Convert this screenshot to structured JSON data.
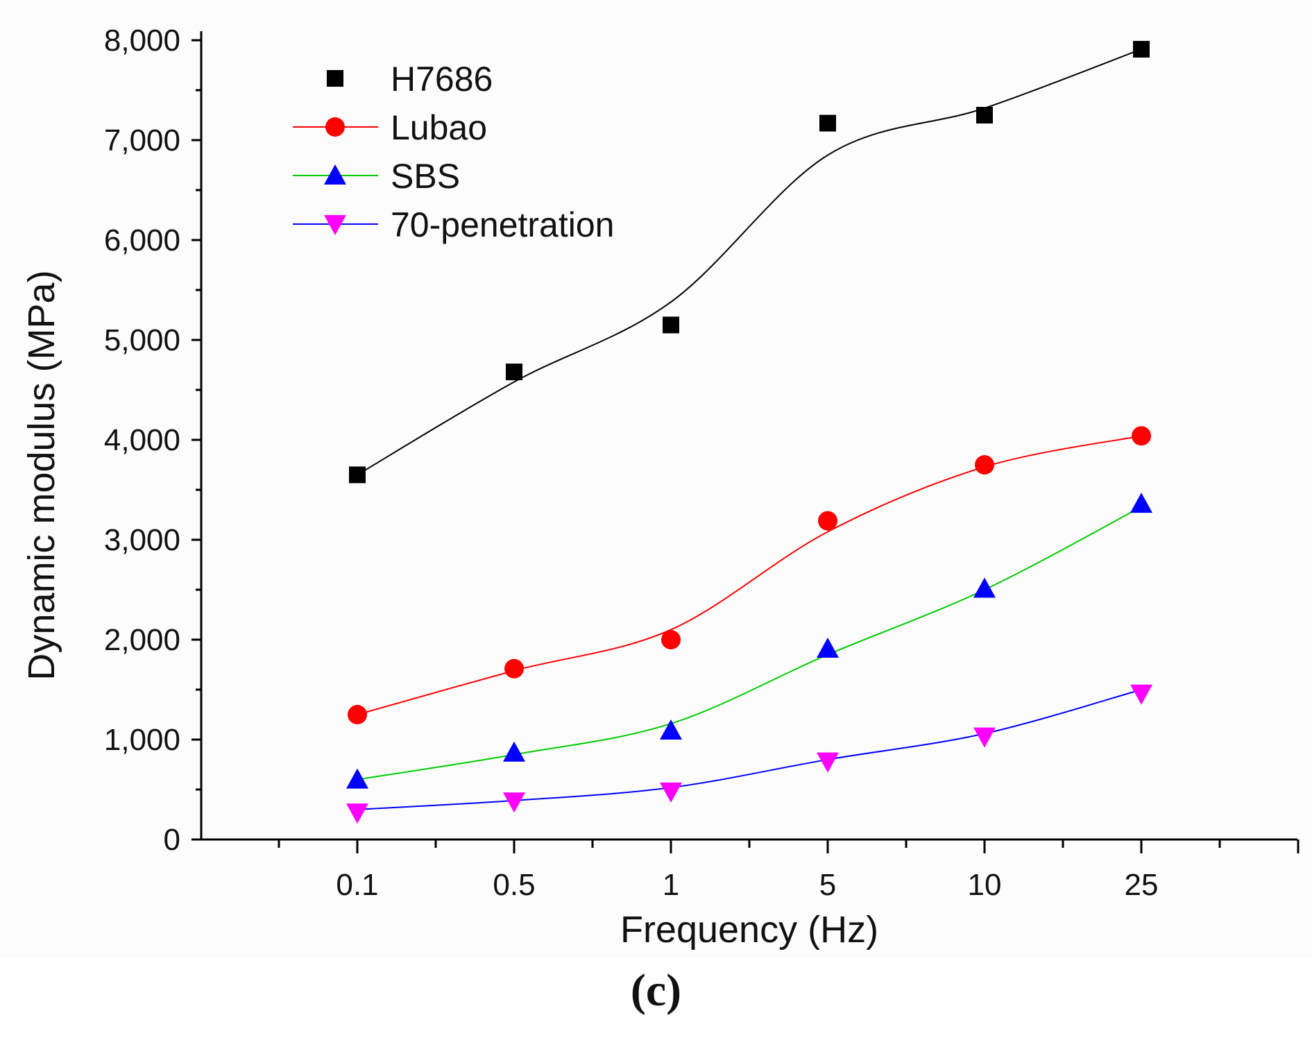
{
  "chart_data": {
    "type": "line",
    "title": "",
    "xlabel": "Frequency (Hz)",
    "ylabel": "Dynamic modulus (MPa)",
    "categories": [
      "0.1",
      "0.5",
      "1",
      "5",
      "10",
      "25"
    ],
    "ylim": [
      0,
      8000
    ],
    "yticks": [
      "0",
      "1,000",
      "2,000",
      "3,000",
      "4,000",
      "5,000",
      "6,000",
      "7,000",
      "8,000"
    ],
    "ytick_values": [
      0,
      1000,
      2000,
      3000,
      4000,
      5000,
      6000,
      7000,
      8000
    ],
    "legend_position": "top-left",
    "series": [
      {
        "name": "H7686",
        "marker": "square",
        "marker_color": "#000000",
        "line_color": "#000000",
        "values": [
          3650,
          4680,
          5150,
          7170,
          7250,
          7910
        ],
        "fit_values": [
          3650,
          4580,
          5380,
          6850,
          7320,
          7910
        ]
      },
      {
        "name": "Lubao",
        "marker": "circle",
        "marker_color": "#ff0000",
        "line_color": "#ff0000",
        "values": [
          1250,
          1710,
          2000,
          3190,
          3750,
          4040
        ],
        "fit_values": [
          1250,
          1690,
          2100,
          3080,
          3730,
          4040
        ]
      },
      {
        "name": "SBS",
        "marker": "triangle-up",
        "marker_color": "#0000ff",
        "line_color": "#00cc00",
        "values": [
          600,
          870,
          1090,
          1910,
          2510,
          3360
        ],
        "fit_values": [
          600,
          850,
          1160,
          1850,
          2500,
          3330
        ]
      },
      {
        "name": "70-penetration",
        "marker": "triangle-down",
        "marker_color": "#ff00ff",
        "line_color": "#0000ff",
        "values": [
          270,
          380,
          480,
          780,
          1030,
          1460
        ],
        "fit_values": [
          300,
          390,
          520,
          800,
          1060,
          1500
        ]
      }
    ]
  },
  "caption": "(c)"
}
